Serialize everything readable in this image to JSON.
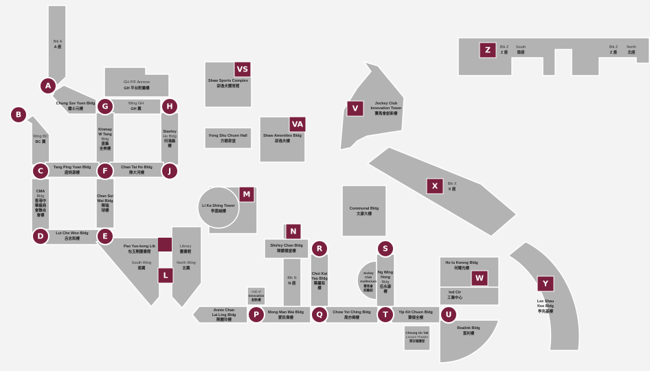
{
  "nodes": {
    "A": "A",
    "B": "B",
    "C": "C",
    "D": "D",
    "E": "E",
    "F": "F",
    "G": "G",
    "H": "H",
    "J": "J",
    "P": "P",
    "Q": "Q",
    "R": "R",
    "S": "S",
    "T": "T",
    "U": "U"
  },
  "tags": {
    "VS": "VS",
    "VA": "VA",
    "V": "V",
    "M": "M",
    "N": "N",
    "L": "L",
    "X": "X",
    "W": "W",
    "Y": "Y",
    "Z": "Z"
  },
  "labels": {
    "blk_a": [
      "Blk A",
      "A 座"
    ],
    "gh_pfl": [
      "GH P/F Annexe",
      "GH 平台附屬樓"
    ],
    "chung_sze_yuen": [
      "Chung Sze Yuen Bldg",
      "鍾士元樓"
    ],
    "wing_gh": [
      "Wing GH",
      "GH 翼"
    ],
    "wing_bc": [
      "Wing BC",
      "BC 翼"
    ],
    "kinmay": [
      "Kinmay",
      "W Tang",
      "Bldg",
      "唐集",
      "全美樓"
    ],
    "stanley_ho": [
      "Stanley",
      "Ho Bldg",
      "何鴻燊",
      "樓"
    ],
    "tang_ping_yuan": [
      "Tang Ping Yuan Bldg",
      "唐炳源樓"
    ],
    "chan_tai_ho": [
      "Chan Tai Ho Bldg",
      "陳大河樓"
    ],
    "cma": [
      "CMA",
      "Bldg",
      "香港中",
      "華廠商",
      "會聯合",
      "會樓"
    ],
    "chan_sui_wai": [
      "Chan Sui",
      "Wai Bldg",
      "陳瑞",
      "球樓"
    ],
    "lui_che_woo": [
      "Lui Che Woo Bldg",
      "呂志和樓"
    ],
    "pao_yue_kong": [
      "Pao Yue-kong Lib",
      "包玉剛圖書館"
    ],
    "library": [
      "Library",
      "圖書館"
    ],
    "south_wing": [
      "South Wing",
      "南翼"
    ],
    "north_wing": [
      "North Wing",
      "北翼"
    ],
    "li_ka_shing": [
      "Li Ka Shing Tower",
      "李嘉誠樓"
    ],
    "shaw_sports": [
      "Shaw Sports Complex",
      "邵逸夫體育館"
    ],
    "fong_shu_chuen": [
      "Fong Shu Chuen Hall",
      "方樹泉堂"
    ],
    "shaw_amenities": [
      "Shaw Amenities Bldg",
      "邵逸夫樓"
    ],
    "jockey_club_innov": [
      "Jockey Club",
      "Innovation Tower",
      "賽馬會創新樓"
    ],
    "communal": [
      "Communal Bldg",
      "文康大樓"
    ],
    "shirley_chan": [
      "Shirley Chan Bldg",
      "陳鏡僑堂樓"
    ],
    "blk_n": [
      "Blk N",
      "N 座"
    ],
    "choi_kai_yau": [
      "Choi Kai",
      "Yau Bldg",
      "蔡繼有",
      "樓"
    ],
    "jockey_aud": [
      "Jockey",
      "Club",
      "Auditorium",
      "賽馬會",
      "綜藝館"
    ],
    "ng_wing_hong": [
      "Ng Wing",
      "Hong",
      "Bldg",
      "伍永康",
      "樓"
    ],
    "hub_innov": [
      "Hub of",
      "Innovation",
      "創新樓"
    ],
    "annie_chan": [
      "Annie Chan",
      "Lai Ling Bldg",
      "陳麗玲樓"
    ],
    "mong_man_wai": [
      "Mong Man Wai Bldg",
      "蒙民偉樓"
    ],
    "chow_yei_ching": [
      "Chow Yei Ching Bldg",
      "周亦卿樓"
    ],
    "yip_kit_chuen": [
      "Yip Kit Chuen Bldg",
      "葉傑全樓"
    ],
    "cheung_on_tak": [
      "Cheung On Tak",
      "Lecture Theatre",
      "張安德講堂"
    ],
    "ho_iu_kwong": [
      "Ho Iu Kwong Bldg",
      "何耀光樓"
    ],
    "ind_ctr": [
      "Ind Ctr",
      "工業中心"
    ],
    "realink": [
      "Realink Bldg",
      "富利樓"
    ],
    "lee_shau_kee": [
      "Lee Shau",
      "Kee Bldg",
      "李兆基樓"
    ],
    "blk_x": [
      "Blk X",
      "X 座"
    ],
    "blk_z_south": [
      "Blk Z",
      "Z 座",
      "South",
      "南座"
    ],
    "blk_z_north": [
      "Blk Z",
      "Z 座",
      "North",
      "北座"
    ]
  }
}
